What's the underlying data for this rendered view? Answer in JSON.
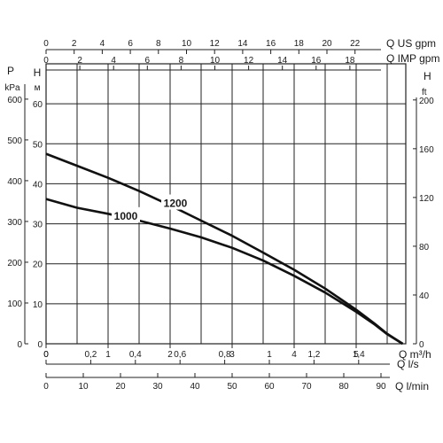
{
  "chart_data": {
    "type": "line",
    "x_primary": {
      "label": "Q m³/h",
      "ticks": [
        "0",
        "1",
        "2",
        "3",
        "4",
        "5"
      ],
      "xlim": [
        0,
        5.8
      ]
    },
    "x_top_us": {
      "label": "Q US gpm",
      "ticks": [
        "0",
        "2",
        "4",
        "6",
        "8",
        "10",
        "12",
        "14",
        "16",
        "18",
        "20",
        "22"
      ]
    },
    "x_top_imp": {
      "label": "Q IMP gpm",
      "ticks": [
        "0",
        "2",
        "4",
        "6",
        "8",
        "10",
        "12",
        "14",
        "16",
        "18"
      ]
    },
    "x_bottom_ls": {
      "label": "Q l/s",
      "ticks": [
        "0",
        "0,2",
        "0,4",
        "0,6",
        "0,8",
        "1",
        "1,2",
        "1,4"
      ]
    },
    "x_bottom_lmin": {
      "label": "Q l/min",
      "ticks": [
        "0",
        "10",
        "20",
        "30",
        "40",
        "50",
        "60",
        "70",
        "80",
        "90"
      ]
    },
    "y_H_m": {
      "label_top": "H",
      "label_bottom": "м",
      "ticks": [
        "0",
        "10",
        "20",
        "30",
        "40",
        "50",
        "60"
      ],
      "ylim": [
        0,
        70
      ]
    },
    "y_P_kPa": {
      "label_top": "P",
      "label_bottom": "kPa",
      "ticks": [
        "0",
        "100",
        "200",
        "300",
        "400",
        "500",
        "600"
      ]
    },
    "y_H_ft": {
      "label_top": "H",
      "label_bottom": "ft",
      "ticks": [
        "0",
        "40",
        "80",
        "120",
        "160",
        "200"
      ]
    },
    "series": [
      {
        "name": "1200",
        "x": [
          0,
          0.5,
          1,
          1.5,
          2,
          2.5,
          3,
          3.5,
          4,
          4.5,
          5,
          5.3,
          5.5,
          5.75
        ],
        "y": [
          47.5,
          44.5,
          41.5,
          38.2,
          34.6,
          30.8,
          27.0,
          22.8,
          18.5,
          13.8,
          8.5,
          5.0,
          2.5,
          0
        ]
      },
      {
        "name": "1000",
        "x": [
          0,
          0.5,
          1,
          1.5,
          2,
          2.5,
          3,
          3.5,
          4,
          4.5,
          5,
          5.3,
          5.5,
          5.75
        ],
        "y": [
          36.2,
          34.0,
          32.5,
          30.8,
          28.8,
          26.6,
          24.0,
          20.8,
          17.0,
          12.8,
          8.0,
          4.8,
          2.4,
          0
        ]
      }
    ]
  }
}
